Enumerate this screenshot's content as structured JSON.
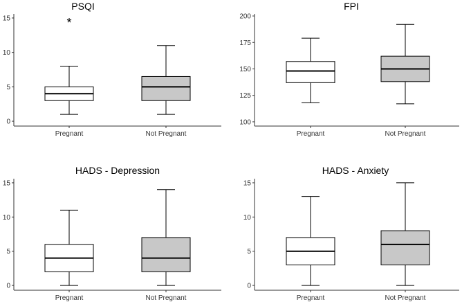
{
  "chart_data": [
    {
      "type": "boxplot",
      "title": "PSQI",
      "categories": [
        "Pregnant",
        "Not Pregnant"
      ],
      "yticks": [
        0,
        5,
        10,
        15
      ],
      "ylim": [
        -0.7,
        15.6
      ],
      "boxes": [
        {
          "name": "Pregnant",
          "min": 1,
          "q1": 3,
          "median": 4,
          "q3": 5,
          "max": 8,
          "fill": "#ffffff"
        },
        {
          "name": "Not Pregnant",
          "min": 1,
          "q1": 3,
          "median": 5,
          "q3": 6.5,
          "max": 11,
          "fill": "#c8c8c8"
        }
      ],
      "annotations": [
        {
          "text": "*",
          "category": "Pregnant",
          "y": 14.6
        }
      ]
    },
    {
      "type": "boxplot",
      "title": "FPI",
      "categories": [
        "Pregnant",
        "Not Pregnant"
      ],
      "yticks": [
        100,
        125,
        150,
        175,
        200
      ],
      "ylim": [
        96,
        202
      ],
      "boxes": [
        {
          "name": "Pregnant",
          "min": 118,
          "q1": 137,
          "median": 148,
          "q3": 157,
          "max": 179,
          "fill": "#ffffff"
        },
        {
          "name": "Not Pregnant",
          "min": 117,
          "q1": 138,
          "median": 150,
          "q3": 162,
          "max": 192,
          "fill": "#c8c8c8"
        }
      ],
      "annotations": []
    },
    {
      "type": "boxplot",
      "title": "HADS - Depression",
      "categories": [
        "Pregnant",
        "Not Pregnant"
      ],
      "yticks": [
        0,
        5,
        10,
        15
      ],
      "ylim": [
        -0.7,
        15.6
      ],
      "boxes": [
        {
          "name": "Pregnant",
          "min": 0,
          "q1": 2,
          "median": 4,
          "q3": 6,
          "max": 11,
          "fill": "#ffffff"
        },
        {
          "name": "Not Pregnant",
          "min": 0,
          "q1": 2,
          "median": 4,
          "q3": 7,
          "max": 14,
          "fill": "#c8c8c8"
        }
      ],
      "annotations": []
    },
    {
      "type": "boxplot",
      "title": "HADS - Anxiety",
      "categories": [
        "Pregnant",
        "Not Pregnant"
      ],
      "yticks": [
        0,
        5,
        10,
        15
      ],
      "ylim": [
        -0.7,
        15.6
      ],
      "boxes": [
        {
          "name": "Pregnant",
          "min": 0,
          "q1": 3,
          "median": 5,
          "q3": 7,
          "max": 13,
          "fill": "#ffffff"
        },
        {
          "name": "Not Pregnant",
          "min": 0,
          "q1": 3,
          "median": 6,
          "q3": 8,
          "max": 15,
          "fill": "#c8c8c8"
        }
      ],
      "annotations": []
    }
  ],
  "colors": {
    "line": "#000000",
    "axis": "#333333"
  }
}
